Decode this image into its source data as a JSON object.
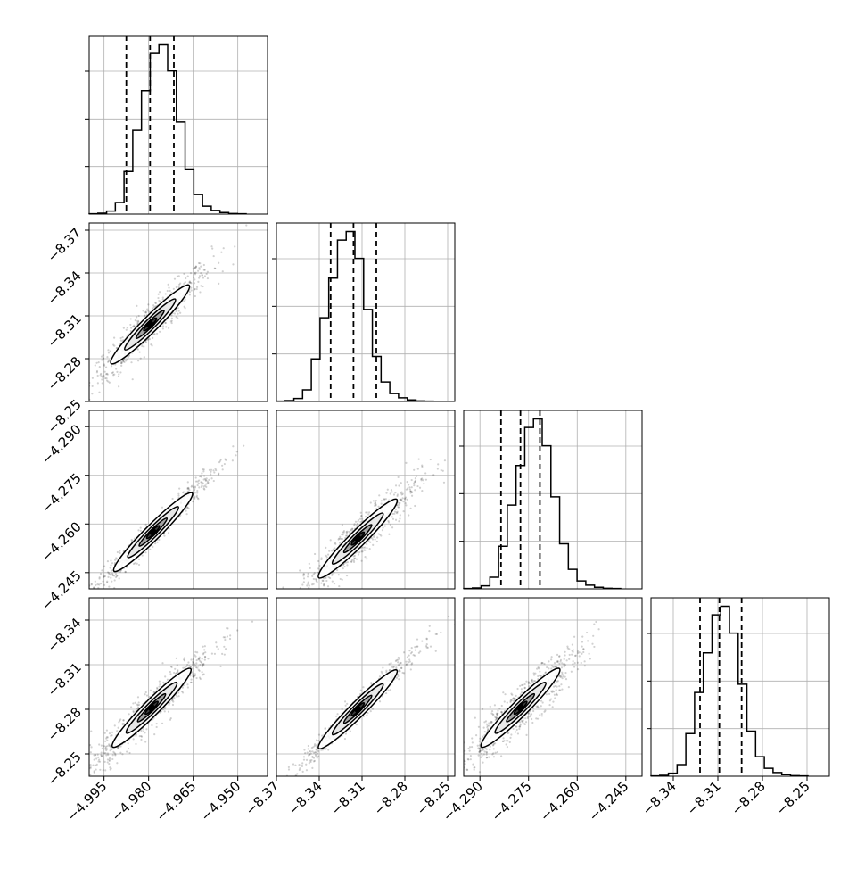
{
  "chart_data": {
    "type": "scatter",
    "subtype": "corner-plot",
    "title": "",
    "parameters": [
      {
        "xticks": [
          "−4.995",
          "−4.980",
          "−4.965",
          "−4.950"
        ],
        "yticks": [],
        "hist": {
          "quantiles": [
            -4.9875,
            -4.9795,
            -4.9715
          ],
          "counts": [
            1,
            3,
            10,
            38,
            140,
            275,
            405,
            530,
            558,
            470,
            302,
            148,
            64,
            26,
            12,
            5,
            2,
            1
          ]
        }
      },
      {
        "xticks": [
          "−8.37",
          "−8.34",
          "−8.31",
          "−8.28",
          "−8.25"
        ],
        "yticks": [
          "−8.25",
          "−8.28",
          "−8.31",
          "−8.34",
          "−8.37"
        ],
        "hist": {
          "quantiles": [
            -8.332,
            -8.316,
            -8.3
          ],
          "counts": [
            1,
            3,
            10,
            38,
            140,
            275,
            405,
            530,
            558,
            470,
            302,
            148,
            64,
            26,
            12,
            5,
            2,
            1
          ]
        }
      },
      {
        "xticks": [
          "−4.290",
          "−4.275",
          "−4.260",
          "−4.245"
        ],
        "yticks": [
          "−4.245",
          "−4.260",
          "−4.275",
          "−4.290"
        ],
        "hist": {
          "quantiles": [
            -4.2835,
            -4.2775,
            -4.2715
          ],
          "counts": [
            1,
            3,
            10,
            38,
            140,
            275,
            405,
            530,
            558,
            470,
            302,
            148,
            64,
            26,
            12,
            5,
            2,
            1
          ]
        }
      },
      {
        "xticks": [
          "−8.34",
          "−8.31",
          "−8.28",
          "−8.25"
        ],
        "yticks": [
          "−8.25",
          "−8.28",
          "−8.31",
          "−8.34"
        ],
        "hist": {
          "quantiles": [
            -8.322,
            -8.309,
            -8.294
          ],
          "counts": [
            1,
            3,
            10,
            38,
            140,
            275,
            405,
            530,
            558,
            470,
            302,
            148,
            64,
            26,
            12,
            5,
            2,
            1
          ]
        }
      }
    ],
    "pairs": [
      {
        "row": 1,
        "col": 0,
        "center": [
          -4.9795,
          -8.316
        ],
        "corr": 0.95
      },
      {
        "row": 2,
        "col": 0,
        "center": [
          -4.9785,
          -4.2775
        ],
        "corr": 0.98
      },
      {
        "row": 2,
        "col": 1,
        "center": [
          -8.313,
          -4.2795
        ],
        "corr": 0.93
      },
      {
        "row": 3,
        "col": 0,
        "center": [
          -4.979,
          -8.309
        ],
        "corr": 0.95
      },
      {
        "row": 3,
        "col": 1,
        "center": [
          -8.313,
          -8.31
        ],
        "corr": 0.98
      },
      {
        "row": 3,
        "col": 2,
        "center": [
          -4.2775,
          -8.309
        ],
        "corr": 0.93
      }
    ],
    "colors": {
      "scatter": "#000000",
      "contour_fill": "#808080",
      "contour_line": "#000000",
      "grid": "#b0b0b0",
      "quantile_line": "#000000"
    }
  }
}
